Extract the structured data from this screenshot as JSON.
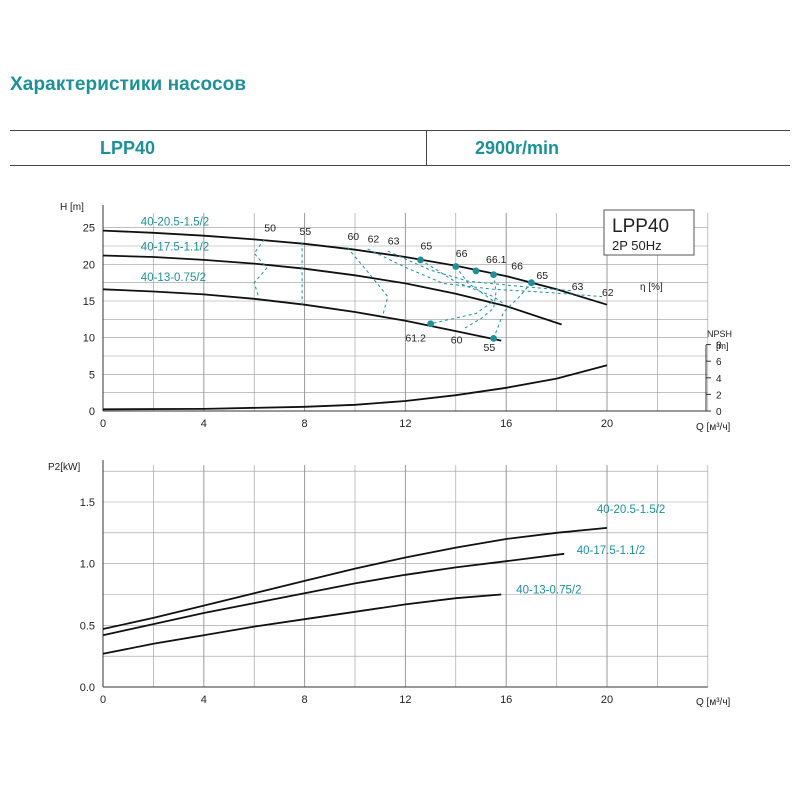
{
  "header": {
    "page_title": "Характеристики насосов",
    "model": "LPP40",
    "speed": "2900r/min"
  },
  "colors": {
    "accent": "#1f8f98",
    "curve": "#111111",
    "grid": "#9a9a9a"
  },
  "chart_data": [
    {
      "type": "line",
      "title": "LPP40",
      "subtitle": "2P  50Hz",
      "xlabel": "Q [м³/ч]",
      "ylabel": "H [m]",
      "y2label": "η [%]",
      "npsh_label_line1": "NPSH",
      "npsh_label_line2": "[m]",
      "xlim": [
        0,
        20
      ],
      "ylim": [
        0,
        27
      ],
      "xticks": [
        0,
        4,
        8,
        12,
        16,
        20
      ],
      "yticks": [
        0,
        5,
        10,
        15,
        20,
        25
      ],
      "npsh_ticks": [
        0,
        2,
        4,
        6,
        8
      ],
      "grid": true,
      "series": [
        {
          "name": "40-20.5-1.5/2",
          "x": [
            0,
            2,
            4,
            6,
            8,
            10,
            12,
            14,
            16,
            18,
            20
          ],
          "y": [
            24.6,
            24.3,
            23.9,
            23.4,
            22.8,
            22.0,
            21.0,
            19.8,
            18.4,
            16.6,
            14.5
          ]
        },
        {
          "name": "40-17.5-1.1/2",
          "x": [
            0,
            2,
            4,
            6,
            8,
            10,
            12,
            14,
            16,
            18.2
          ],
          "y": [
            21.2,
            21.0,
            20.6,
            20.1,
            19.4,
            18.5,
            17.4,
            16.0,
            14.3,
            11.8
          ]
        },
        {
          "name": "40-13-0.75/2",
          "x": [
            0,
            2,
            4,
            6,
            8,
            10,
            12,
            14,
            15.8
          ],
          "y": [
            16.6,
            16.3,
            15.9,
            15.3,
            14.5,
            13.5,
            12.3,
            10.9,
            9.6
          ]
        },
        {
          "name": "NPSH",
          "x": [
            0,
            4,
            8,
            10,
            12,
            14,
            16,
            18,
            20
          ],
          "npsh": [
            0.2,
            0.25,
            0.5,
            0.75,
            1.2,
            1.9,
            2.8,
            3.9,
            5.5
          ]
        }
      ],
      "efficiency_labels": [
        {
          "text": "50",
          "x": 6.4,
          "y": 24.5
        },
        {
          "text": "55",
          "x": 7.8,
          "y": 24.0
        },
        {
          "text": "60",
          "x": 9.7,
          "y": 23.3
        },
        {
          "text": "62",
          "x": 10.5,
          "y": 23.0
        },
        {
          "text": "63",
          "x": 11.3,
          "y": 22.7
        },
        {
          "text": "65",
          "x": 12.6,
          "y": 22.0
        },
        {
          "text": "66",
          "x": 14.0,
          "y": 21.0
        },
        {
          "text": "66.1",
          "x": 15.2,
          "y": 20.2
        },
        {
          "text": "66",
          "x": 16.2,
          "y": 19.3
        },
        {
          "text": "65",
          "x": 17.2,
          "y": 18.0
        },
        {
          "text": "63",
          "x": 18.6,
          "y": 16.5
        },
        {
          "text": "62",
          "x": 19.8,
          "y": 15.7
        },
        {
          "text": "61.2",
          "x": 12.0,
          "y": 9.5
        },
        {
          "text": "60",
          "x": 13.8,
          "y": 9.2
        },
        {
          "text": "55",
          "x": 15.1,
          "y": 8.2
        }
      ],
      "efficiency_points": [
        {
          "x": 12.6,
          "y": 20.6
        },
        {
          "x": 14.0,
          "y": 19.7
        },
        {
          "x": 14.8,
          "y": 19.1
        },
        {
          "x": 15.5,
          "y": 18.6
        },
        {
          "x": 17.0,
          "y": 17.5
        },
        {
          "x": 13.0,
          "y": 11.9
        },
        {
          "x": 15.5,
          "y": 9.9
        }
      ],
      "series_labels": [
        {
          "text": "40-20.5-1.5/2",
          "x": 1.5,
          "y": 25.3
        },
        {
          "text": "40-17.5-1.1/2",
          "x": 1.5,
          "y": 21.9
        },
        {
          "text": "40-13-0.75/2",
          "x": 1.5,
          "y": 17.7
        }
      ]
    },
    {
      "type": "line",
      "xlabel": "Q [м³/ч]",
      "ylabel": "P2[kW]",
      "xlim": [
        0,
        20
      ],
      "ylim": [
        0,
        1.8
      ],
      "xticks": [
        0,
        4,
        8,
        12,
        16,
        20
      ],
      "yticks": [
        0.0,
        0.5,
        1.0,
        1.5
      ],
      "ytick_labels": [
        "0.0",
        "0.5",
        "1.0",
        "1.5"
      ],
      "grid": true,
      "series": [
        {
          "name": "40-20.5-1.5/2",
          "x": [
            0,
            2,
            4,
            6,
            8,
            10,
            12,
            14,
            16,
            18,
            20
          ],
          "y": [
            0.47,
            0.56,
            0.66,
            0.76,
            0.86,
            0.96,
            1.05,
            1.13,
            1.2,
            1.25,
            1.29
          ]
        },
        {
          "name": "40-17.5-1.1/2",
          "x": [
            0,
            2,
            4,
            6,
            8,
            10,
            12,
            14,
            16,
            18.3
          ],
          "y": [
            0.42,
            0.51,
            0.6,
            0.68,
            0.76,
            0.84,
            0.91,
            0.97,
            1.02,
            1.08
          ]
        },
        {
          "name": "40-13-0.75/2",
          "x": [
            0,
            2,
            4,
            6,
            8,
            10,
            12,
            14,
            15.8
          ],
          "y": [
            0.27,
            0.35,
            0.42,
            0.49,
            0.55,
            0.61,
            0.67,
            0.72,
            0.75
          ]
        }
      ],
      "series_labels": [
        {
          "text": "40-20.5-1.5/2",
          "x": 19.6,
          "y": 1.41
        },
        {
          "text": "40-17.5-1.1/2",
          "x": 18.8,
          "y": 1.08
        },
        {
          "text": "40-13-0.75/2",
          "x": 16.4,
          "y": 0.76
        }
      ]
    }
  ]
}
